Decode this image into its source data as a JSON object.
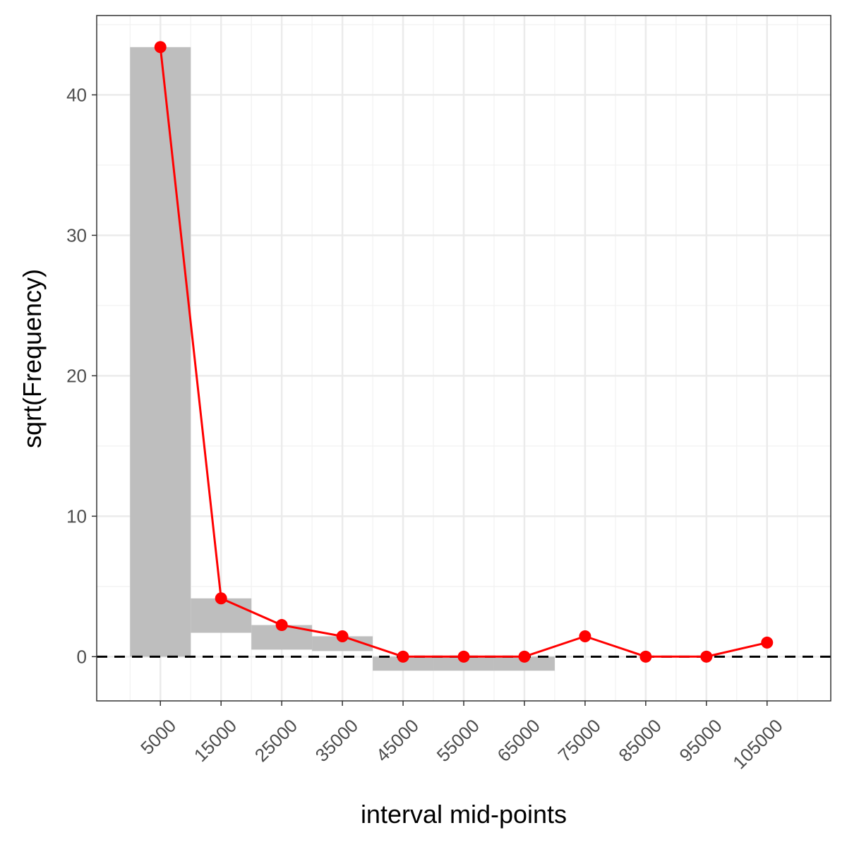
{
  "chart_data": {
    "type": "rootogram",
    "xlabel": "interval mid-points",
    "ylabel": "sqrt(Frequency)",
    "x_ticks": [
      5000,
      15000,
      25000,
      35000,
      45000,
      55000,
      65000,
      75000,
      85000,
      95000,
      105000
    ],
    "x_tick_labels": [
      "5000",
      "15000",
      "25000",
      "35000",
      "45000",
      "55000",
      "65000",
      "75000",
      "85000",
      "95000",
      "105000"
    ],
    "y_ticks": [
      0,
      10,
      20,
      30,
      40
    ],
    "y_tick_labels": [
      "0",
      "10",
      "20",
      "30",
      "40"
    ],
    "xlim": [
      -5500,
      115500
    ],
    "ylim": [
      -3.15,
      45.65
    ],
    "bin_width": 10000,
    "bars": [
      {
        "mid": 5000,
        "top": 43.4,
        "bottom": 0.0
      },
      {
        "mid": 15000,
        "top": 4.15,
        "bottom": 1.7
      },
      {
        "mid": 25000,
        "top": 2.25,
        "bottom": 0.5
      },
      {
        "mid": 35000,
        "top": 1.45,
        "bottom": 0.4
      },
      {
        "mid": 45000,
        "top": 0.0,
        "bottom": -1.0
      },
      {
        "mid": 55000,
        "top": 0.0,
        "bottom": -1.0
      },
      {
        "mid": 65000,
        "top": 0.0,
        "bottom": -1.0
      }
    ],
    "expected_series": {
      "x": [
        5000,
        15000,
        25000,
        35000,
        45000,
        55000,
        65000,
        75000,
        85000,
        95000,
        105000
      ],
      "y": [
        43.4,
        4.15,
        2.25,
        1.45,
        0.0,
        0.0,
        0.0,
        1.45,
        0.0,
        0.0,
        1.0
      ]
    },
    "reference_line_y": 0,
    "grid": true,
    "colors": {
      "bar": "#bebebe",
      "line": "#ff0000",
      "reference": "#000000",
      "grid_major": "#ebebeb",
      "grid_minor": "#f2f2f2",
      "panel_border": "#333333",
      "tick_text": "#4d4d4d"
    }
  }
}
